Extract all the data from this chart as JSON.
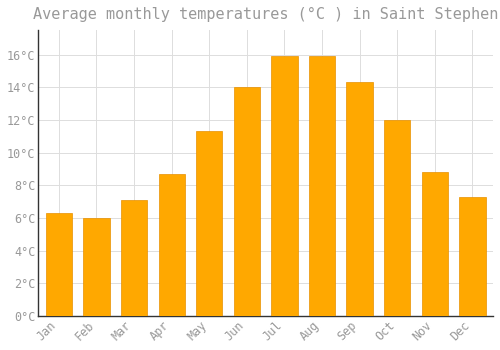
{
  "title": "Average monthly temperatures (°C ) in Saint Stephen",
  "months": [
    "Jan",
    "Feb",
    "Mar",
    "Apr",
    "May",
    "Jun",
    "Jul",
    "Aug",
    "Sep",
    "Oct",
    "Nov",
    "Dec"
  ],
  "values": [
    6.3,
    6.0,
    7.1,
    8.7,
    11.3,
    14.0,
    15.9,
    15.9,
    14.3,
    12.0,
    8.8,
    7.3
  ],
  "bar_color": "#FFA800",
  "bar_edge_color": "#E89000",
  "background_color": "#FFFFFF",
  "grid_color": "#DDDDDD",
  "text_color": "#999999",
  "ylim": [
    0,
    17.5
  ],
  "yticks": [
    0,
    2,
    4,
    6,
    8,
    10,
    12,
    14,
    16
  ],
  "title_fontsize": 11,
  "tick_fontsize": 8.5
}
